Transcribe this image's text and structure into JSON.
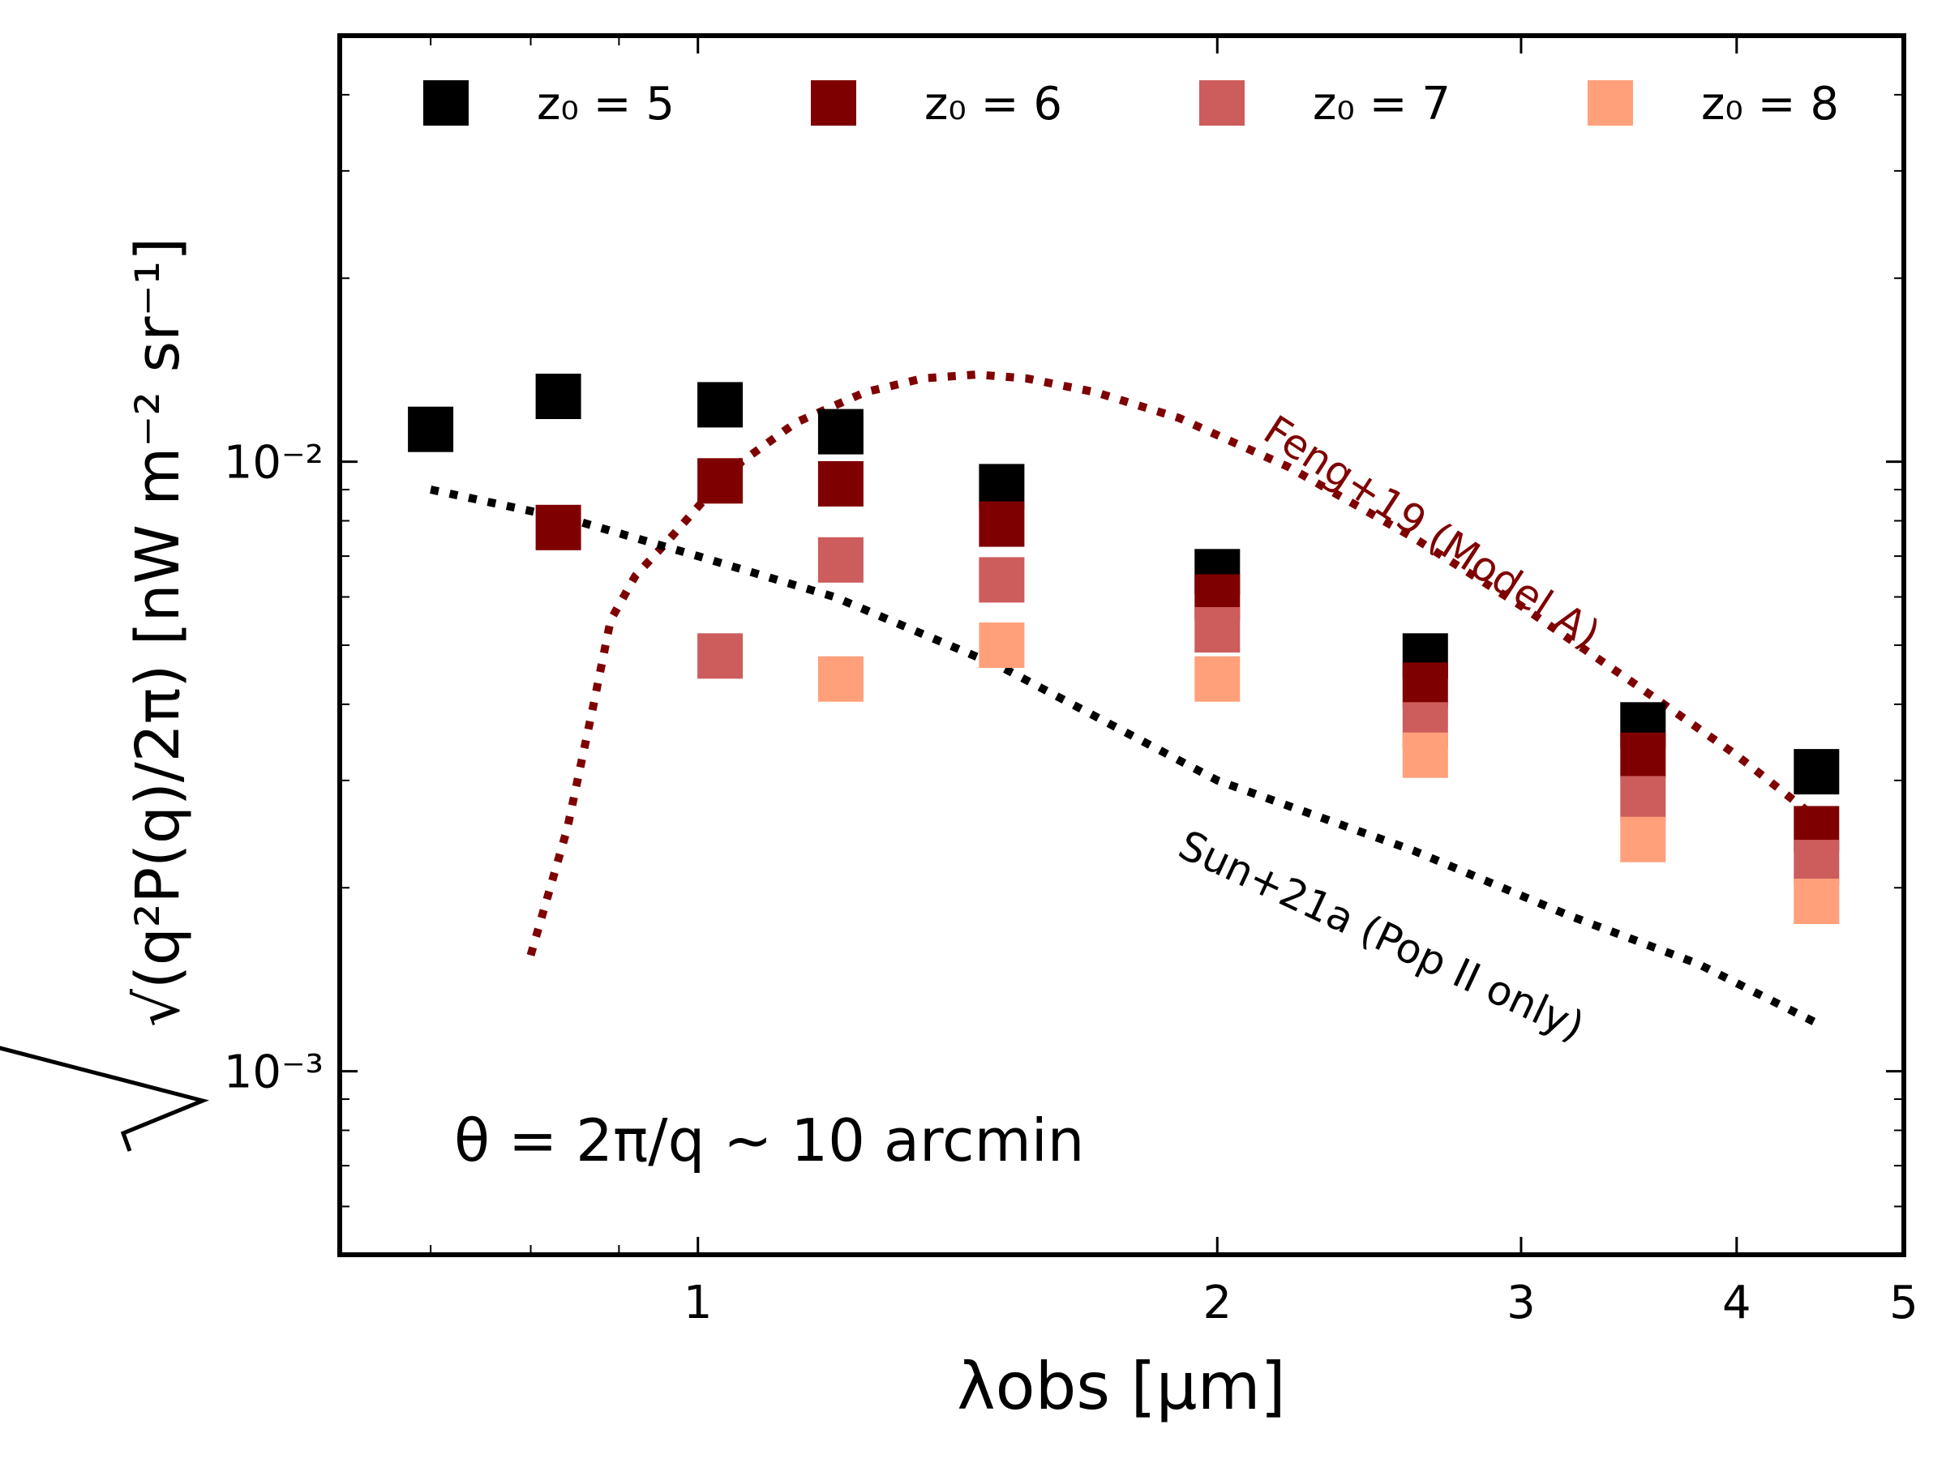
{
  "chart_data": {
    "type": "scatter",
    "xscale": "log",
    "yscale": "log",
    "xlim": [
      0.62,
      5.0
    ],
    "ylim": [
      0.0005,
      0.05
    ],
    "grid": false,
    "legend_placement": "top",
    "xlabel": "λobs [μm]",
    "ylabel": "√(q²P(q)/2π) [nW m⁻² sr⁻¹]",
    "xticks": [
      {
        "value": 1,
        "label": "1"
      },
      {
        "value": 2,
        "label": "2"
      },
      {
        "value": 3,
        "label": "3"
      },
      {
        "value": 4,
        "label": "4"
      },
      {
        "value": 5,
        "label": "5"
      }
    ],
    "yticks": [
      {
        "value": 0.001,
        "label": "10⁻³"
      },
      {
        "value": 0.01,
        "label": "10⁻²"
      }
    ],
    "annotation": "θ = 2π/q ~ 10 arcmin",
    "series": [
      {
        "name": "z₀ = 5",
        "color": "#000000",
        "x": [
          0.7,
          0.83,
          1.03,
          1.21,
          1.5,
          2.0,
          2.64,
          3.53,
          4.45
        ],
        "y": [
          0.0113,
          0.0128,
          0.0124,
          0.0112,
          0.0091,
          0.0066,
          0.0048,
          0.0037,
          0.0031
        ]
      },
      {
        "name": "z₀ = 6",
        "color": "#7f0000",
        "x": [
          0.83,
          1.03,
          1.21,
          1.5,
          2.0,
          2.64,
          3.53,
          4.45
        ],
        "y": [
          0.0078,
          0.0093,
          0.0092,
          0.0079,
          0.006,
          0.0043,
          0.0033,
          0.0025
        ]
      },
      {
        "name": "z₀ = 7",
        "color": "#cd5c5c",
        "x": [
          1.03,
          1.21,
          1.5,
          2.0,
          2.64,
          3.53,
          4.45
        ],
        "y": [
          0.0048,
          0.0069,
          0.0064,
          0.0053,
          0.0037,
          0.0028,
          0.0022
        ]
      },
      {
        "name": "z₀ = 8",
        "color": "#ffa07a",
        "x": [
          1.21,
          1.5,
          2.0,
          2.64,
          3.53,
          4.45
        ],
        "y": [
          0.0044,
          0.005,
          0.0044,
          0.0033,
          0.0024,
          0.0019
        ]
      }
    ],
    "curves": [
      {
        "name": "Feng+19 (Model A)",
        "color": "#7f0000",
        "x": [
          0.8,
          0.84,
          0.87,
          0.89,
          0.92,
          0.96,
          1.01,
          1.06,
          1.14,
          1.25,
          1.35,
          1.45,
          1.55,
          1.7,
          1.9,
          2.2,
          2.6,
          3.0,
          3.5,
          4.0,
          4.45
        ],
        "y": [
          0.00155,
          0.0025,
          0.004,
          0.0055,
          0.0065,
          0.0074,
          0.0087,
          0.01,
          0.0116,
          0.013,
          0.0137,
          0.0139,
          0.0137,
          0.013,
          0.0118,
          0.0098,
          0.0075,
          0.0058,
          0.0043,
          0.0033,
          0.0026
        ]
      },
      {
        "name": "Sun+21a (Pop II only)",
        "color": "#000000",
        "x": [
          0.7,
          0.85,
          1.0,
          1.2,
          1.5,
          2.0,
          2.6,
          3.2,
          3.8,
          4.45
        ],
        "y": [
          0.009,
          0.008,
          0.007,
          0.006,
          0.0046,
          0.003,
          0.0023,
          0.0018,
          0.0015,
          0.0012
        ]
      }
    ]
  }
}
